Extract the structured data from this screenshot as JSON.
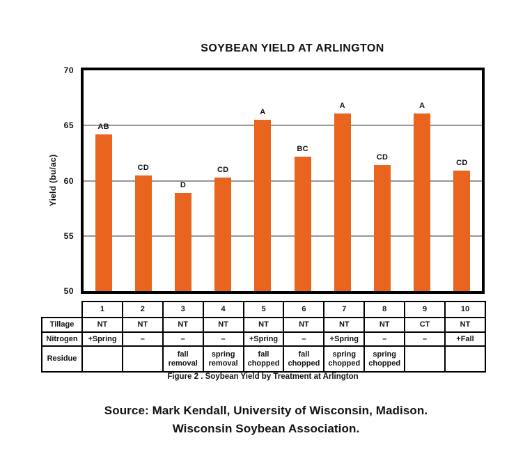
{
  "chart_data": {
    "type": "bar",
    "title": "SOYBEAN YIELD AT ARLINGTON",
    "xlabel": "",
    "ylabel": "Yield (bu/ac)",
    "ylim": [
      50,
      70
    ],
    "yticks": [
      50,
      55,
      60,
      65,
      70
    ],
    "gridlines": [
      55,
      60,
      65
    ],
    "grid": "horizontal",
    "legend": "none",
    "bar_color": "#E8641F",
    "categories": [
      "1",
      "2",
      "3",
      "4",
      "5",
      "6",
      "7",
      "8",
      "9",
      "10"
    ],
    "values": [
      64.2,
      60.5,
      58.9,
      60.3,
      65.5,
      62.2,
      66.1,
      61.4,
      66.1,
      60.9
    ],
    "bar_labels": [
      "AB",
      "CD",
      "D",
      "CD",
      "A",
      "BC",
      "A",
      "CD",
      "A",
      "CD"
    ]
  },
  "table": {
    "column_headers": [
      "1",
      "2",
      "3",
      "4",
      "5",
      "6",
      "7",
      "8",
      "9",
      "10"
    ],
    "rows": [
      {
        "label": "Tillage",
        "values": [
          "NT",
          "NT",
          "NT",
          "NT",
          "NT",
          "NT",
          "NT",
          "NT",
          "CT",
          "NT"
        ]
      },
      {
        "label": "Nitrogen",
        "values": [
          "+Spring",
          "–",
          "–",
          "–",
          "+Spring",
          "–",
          "+Spring",
          "–",
          "–",
          "+Fall"
        ]
      },
      {
        "label": "Residue",
        "values": [
          "",
          "",
          "fall removal",
          "spring removal",
          "fall chopped",
          "fall chopped",
          "spring chopped",
          "spring chopped",
          "",
          ""
        ]
      }
    ]
  },
  "caption": "Figure 2 . Soybean Yield by Treatment at Arlington",
  "source": {
    "line1": "Source: Mark Kendall, University of Wisconsin, Madison.",
    "line2": "Wisconsin Soybean Association."
  }
}
